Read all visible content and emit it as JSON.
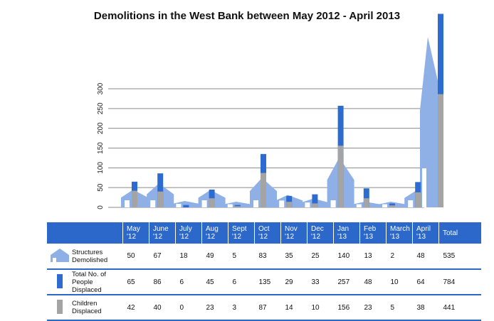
{
  "chart_data": {
    "type": "bar",
    "title": "Demolitions in the West Bank between May 2012 - April 2013",
    "categories": [
      "May\n'12",
      "June\n'12",
      "July\n'12",
      "Aug\n'12",
      "Sept\n'12",
      "Oct\n'12",
      "Nov\n'12",
      "Dec\n'12",
      "Jan\n'13",
      "Feb\n'13",
      "March\n'13",
      "April\n'13"
    ],
    "total_label": "Total",
    "yticks": [
      0,
      50,
      100,
      150,
      200,
      250,
      300
    ],
    "ylim": [
      0,
      300
    ],
    "grid": true,
    "series": [
      {
        "name": "Structures Demolished",
        "values": [
          50,
          67,
          18,
          49,
          5,
          83,
          35,
          25,
          140,
          13,
          2,
          48
        ],
        "total": 535,
        "color": "#8fb0e6"
      },
      {
        "name": "Total No. of People Displaced",
        "values": [
          65,
          86,
          6,
          45,
          6,
          135,
          29,
          33,
          257,
          48,
          10,
          64
        ],
        "total": 784,
        "color": "#2d6bd0"
      },
      {
        "name": "Children Displaced",
        "values": [
          42,
          40,
          0,
          23,
          3,
          87,
          14,
          10,
          156,
          23,
          5,
          38
        ],
        "total": 441,
        "color": "#a4a4a4"
      }
    ]
  }
}
